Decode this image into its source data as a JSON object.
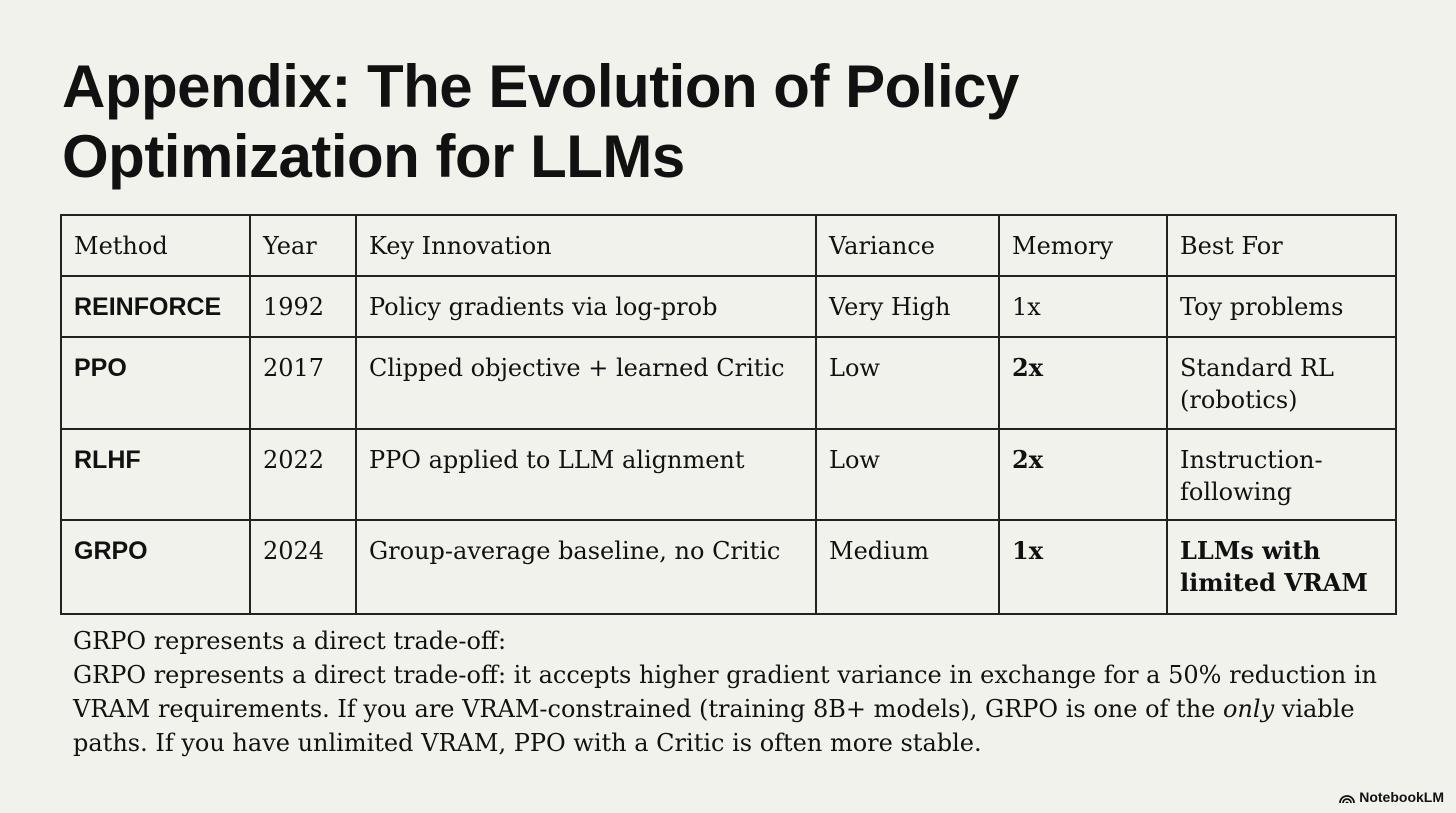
{
  "title_line1": "Appendix: The Evolution of Policy",
  "title_line2": "Optimization for LLMs",
  "table": {
    "headers": [
      "Method",
      "Year",
      "Key Innovation",
      "Variance",
      "Memory",
      "Best For"
    ],
    "rows": [
      [
        "REINFORCE",
        "1992",
        "Policy gradients via log-prob",
        "Very High",
        "1x",
        "Toy problems"
      ],
      [
        "PPO",
        "2017",
        "Clipped objective + learned Critic",
        "Low",
        "2x",
        "Standard RL (robotics)"
      ],
      [
        "RLHF",
        "2022",
        "PPO applied to LLM alignment",
        "Low",
        "2x",
        "Instruction-following"
      ],
      [
        "GRPO",
        "2024",
        "Group-average baseline, no Critic",
        "Medium",
        "1x",
        "LLMs with limited VRAM"
      ]
    ]
  },
  "note": {
    "line1": "GRPO represents a direct trade-off:",
    "before_italic": "GRPO represents a direct trade-off: it accepts higher gradient variance in exchange for a 50% reduction in VRAM requirements. If you are VRAM-constrained (training 8B+ models), GRPO is one of the ",
    "italic": "only",
    "after_italic": " viable paths. If you have unlimited VRAM, PPO with a Critic is often more stable."
  },
  "branding": {
    "label": "NotebookLM",
    "icon": "notebooklm-logo-icon"
  }
}
